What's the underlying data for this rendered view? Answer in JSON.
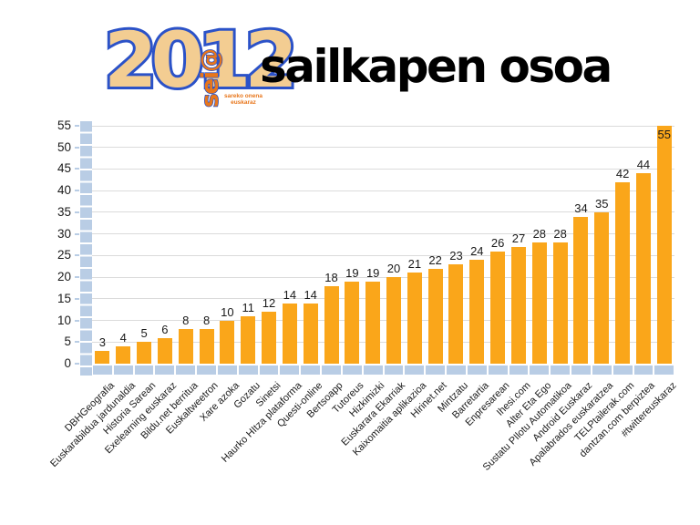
{
  "logo": {
    "numerals": "2012",
    "overlay": "sei@",
    "tagline": "sareko onena euskaraz"
  },
  "title": "sailkapen osoa",
  "chart_data": {
    "type": "bar",
    "title": "sailkapen osoa",
    "categories": [
      "DBHGeografia",
      "Euskarabildua jardunaldia",
      "Historia Sarean",
      "Exelearning euskaraz",
      "Bildu.net berritua",
      "Euskaltweetron",
      "Xare azoka",
      "Gozatu",
      "Sinetsi",
      "Haurko HItza plataforma",
      "Questi-online",
      "Bertsoapp",
      "Tutoreus",
      "Hizkimizki",
      "Euskarara Ekarriak",
      "Kaixomaitia aplikazioa",
      "Hirinet.net",
      "Mintzatu",
      "Barretartia",
      "Enpresarean",
      "Ihesi.com",
      "Alter Eta Ego",
      "Sustatu PIlotu Automatikoa",
      "Android Euskaraz",
      "Apalabrados euskaratzea",
      "TELPtailerak.com",
      "dantzan.com berpiztea",
      "#twittereuskaraz"
    ],
    "values": [
      3,
      4,
      5,
      6,
      8,
      8,
      10,
      11,
      12,
      14,
      14,
      18,
      19,
      19,
      20,
      21,
      22,
      23,
      24,
      26,
      27,
      28,
      28,
      34,
      35,
      42,
      44,
      55
    ],
    "xlabel": "",
    "ylabel": "",
    "ylim": [
      0,
      55
    ],
    "yticks": [
      0,
      5,
      10,
      15,
      20,
      25,
      30,
      35,
      40,
      45,
      50,
      55
    ],
    "grid": true,
    "legend": false,
    "data_labels": true,
    "bar_color": "#FAA61A",
    "axis_color": "#B9CDE5",
    "gridline_color": "#DBDBDB",
    "label_color": "#1a1a1a"
  }
}
